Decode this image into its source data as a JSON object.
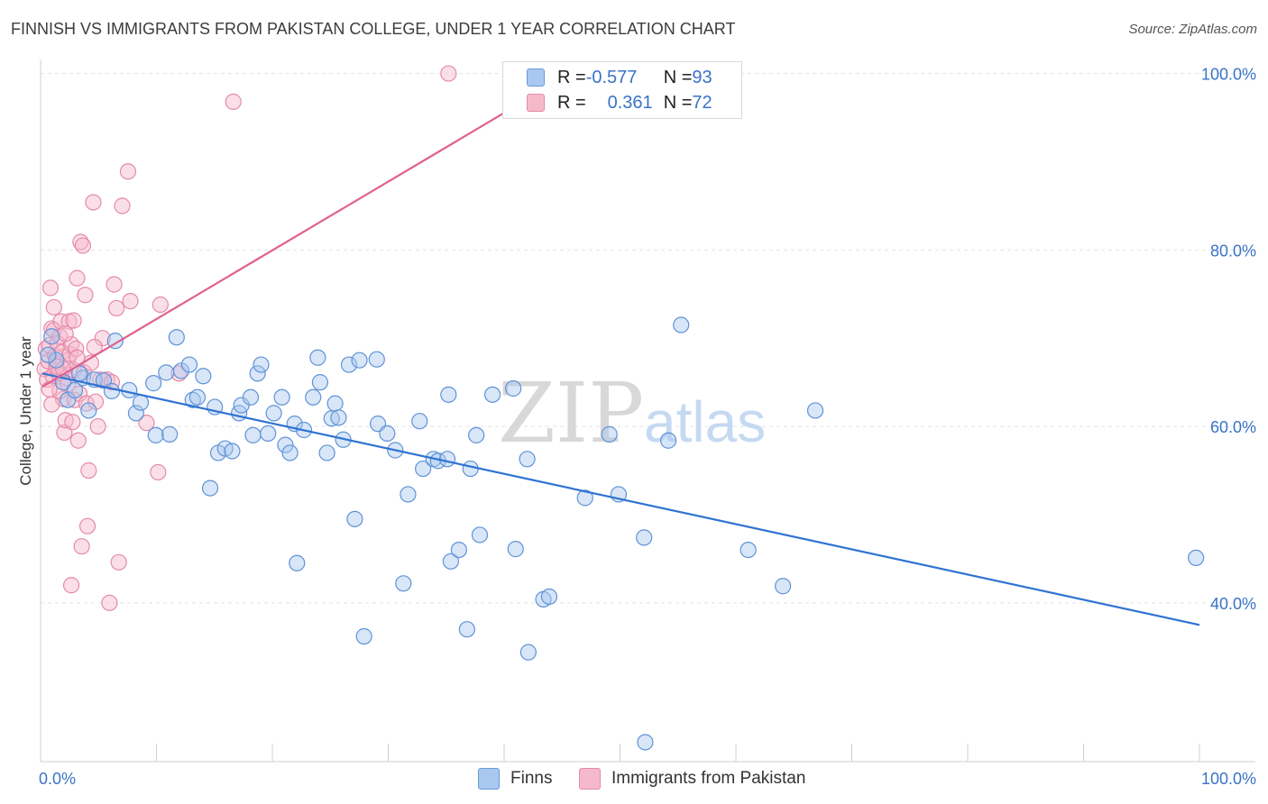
{
  "title": "FINNISH VS IMMIGRANTS FROM PAKISTAN COLLEGE, UNDER 1 YEAR CORRELATION CHART",
  "source": "Source: ZipAtlas.com",
  "watermark": {
    "zip": "ZIP",
    "atlas": "atlas"
  },
  "legend_stats": [
    {
      "r_label": "R = ",
      "r_value": "-0.577",
      "n_label": "N = ",
      "n_value": "93",
      "color": "#a9c8f0",
      "stroke": "#6a9ad8"
    },
    {
      "r_label": "R = ",
      "r_value": "0.361",
      "n_label": "N = ",
      "n_value": "72",
      "color": "#f6b9cc",
      "stroke": "#e58aa9"
    }
  ],
  "chart_data": {
    "type": "scatter",
    "title": "FINNISH VS IMMIGRANTS FROM PAKISTAN COLLEGE, UNDER 1 YEAR CORRELATION CHART",
    "xlabel": "",
    "ylabel": "College, Under 1 year",
    "x_tick_labels": [
      "0.0%",
      "100.0%"
    ],
    "y_tick_labels": [
      "40.0%",
      "60.0%",
      "80.0%",
      "100.0%"
    ],
    "y_ticks": [
      40,
      60,
      80,
      100
    ],
    "xlim": [
      0,
      100
    ],
    "ylim": [
      22,
      102
    ],
    "grid": true,
    "legend_position": "bottom-center",
    "series": [
      {
        "name": "Finns",
        "color": "#a9c8f0",
        "stroke": "#5f93d6",
        "line_color": "#2f73d2",
        "trend": {
          "x": [
            0,
            100
          ],
          "y": [
            66.0,
            37.5
          ]
        },
        "points": [
          [
            0.8,
            70.2
          ],
          [
            1.2,
            67.5
          ],
          [
            1.8,
            65.0
          ],
          [
            2.2,
            63.0
          ],
          [
            2.8,
            64.1
          ],
          [
            3.5,
            65.5
          ],
          [
            4.0,
            61.8
          ],
          [
            4.5,
            65.3
          ],
          [
            5.3,
            65.2
          ],
          [
            6.0,
            64.0
          ],
          [
            6.3,
            69.7
          ],
          [
            7.5,
            64.1
          ],
          [
            8.1,
            61.5
          ],
          [
            8.5,
            62.7
          ],
          [
            9.6,
            64.9
          ],
          [
            9.8,
            59.0
          ],
          [
            10.7,
            66.1
          ],
          [
            11.0,
            59.1
          ],
          [
            11.6,
            70.1
          ],
          [
            12.0,
            66.3
          ],
          [
            12.7,
            67.0
          ],
          [
            13.0,
            63.0
          ],
          [
            13.4,
            63.3
          ],
          [
            13.9,
            65.7
          ],
          [
            14.5,
            53.0
          ],
          [
            14.9,
            62.2
          ],
          [
            15.2,
            57.0
          ],
          [
            15.8,
            57.5
          ],
          [
            16.4,
            57.2
          ],
          [
            17.0,
            61.5
          ],
          [
            17.2,
            62.4
          ],
          [
            18.0,
            63.3
          ],
          [
            18.2,
            59.0
          ],
          [
            18.6,
            66.0
          ],
          [
            18.9,
            67.0
          ],
          [
            19.5,
            59.2
          ],
          [
            20.0,
            61.5
          ],
          [
            20.7,
            63.3
          ],
          [
            21.0,
            57.9
          ],
          [
            21.4,
            57.0
          ],
          [
            21.8,
            60.3
          ],
          [
            22.0,
            44.5
          ],
          [
            22.6,
            59.6
          ],
          [
            23.4,
            63.3
          ],
          [
            23.8,
            67.8
          ],
          [
            24.0,
            65.0
          ],
          [
            24.6,
            57.0
          ],
          [
            25.0,
            60.9
          ],
          [
            25.3,
            62.6
          ],
          [
            25.6,
            61.0
          ],
          [
            26.0,
            58.5
          ],
          [
            26.5,
            67.0
          ],
          [
            27.0,
            49.5
          ],
          [
            27.4,
            67.5
          ],
          [
            27.8,
            36.2
          ],
          [
            28.9,
            67.6
          ],
          [
            29.0,
            60.3
          ],
          [
            29.8,
            59.2
          ],
          [
            30.5,
            57.3
          ],
          [
            31.2,
            42.2
          ],
          [
            31.6,
            52.3
          ],
          [
            32.6,
            60.6
          ],
          [
            32.9,
            55.2
          ],
          [
            33.8,
            56.3
          ],
          [
            34.2,
            56.1
          ],
          [
            35.0,
            56.3
          ],
          [
            35.1,
            63.6
          ],
          [
            35.3,
            44.7
          ],
          [
            36.0,
            46.0
          ],
          [
            36.7,
            37.0
          ],
          [
            37.0,
            55.2
          ],
          [
            37.5,
            59.0
          ],
          [
            37.8,
            47.7
          ],
          [
            38.9,
            63.6
          ],
          [
            40.7,
            64.3
          ],
          [
            40.9,
            46.1
          ],
          [
            41.9,
            56.3
          ],
          [
            42.0,
            34.4
          ],
          [
            43.3,
            40.4
          ],
          [
            43.8,
            40.7
          ],
          [
            46.9,
            51.9
          ],
          [
            49.0,
            59.1
          ],
          [
            49.8,
            52.3
          ],
          [
            52.0,
            47.4
          ],
          [
            52.1,
            24.2
          ],
          [
            54.1,
            58.4
          ],
          [
            55.2,
            71.5
          ],
          [
            61.0,
            46.0
          ],
          [
            64.0,
            41.9
          ],
          [
            66.8,
            61.8
          ],
          [
            99.7,
            45.1
          ],
          [
            0.5,
            68.1
          ],
          [
            3.2,
            66.0
          ]
        ]
      },
      {
        "name": "Immigrants from Pakistan",
        "color": "#f6b9cc",
        "stroke": "#e58aa9",
        "line_color": "#e0608f",
        "trend": {
          "x": [
            0,
            40.5
          ],
          "y": [
            64.5,
            96.0
          ]
        },
        "points": [
          [
            0.2,
            66.5
          ],
          [
            0.3,
            68.8
          ],
          [
            0.4,
            65.3
          ],
          [
            0.5,
            67.4
          ],
          [
            0.6,
            69.2
          ],
          [
            0.7,
            75.7
          ],
          [
            0.8,
            71.1
          ],
          [
            0.9,
            65.7
          ],
          [
            1.0,
            70.9
          ],
          [
            1.1,
            68.0
          ],
          [
            1.2,
            67.2
          ],
          [
            1.3,
            69.4
          ],
          [
            1.4,
            66.0
          ],
          [
            1.5,
            70.2
          ],
          [
            1.6,
            71.9
          ],
          [
            1.7,
            68.4
          ],
          [
            1.8,
            63.1
          ],
          [
            1.9,
            59.3
          ],
          [
            2.0,
            60.7
          ],
          [
            2.1,
            65.5
          ],
          [
            2.2,
            67.5
          ],
          [
            2.3,
            71.9
          ],
          [
            2.4,
            68.2
          ],
          [
            2.5,
            69.3
          ],
          [
            2.6,
            60.5
          ],
          [
            2.7,
            66.4
          ],
          [
            2.8,
            63.0
          ],
          [
            2.9,
            68.8
          ],
          [
            3.0,
            67.8
          ],
          [
            3.1,
            58.4
          ],
          [
            3.2,
            63.7
          ],
          [
            3.3,
            80.9
          ],
          [
            3.4,
            46.4
          ],
          [
            3.5,
            80.5
          ],
          [
            3.6,
            66.1
          ],
          [
            3.7,
            74.9
          ],
          [
            3.8,
            62.6
          ],
          [
            3.9,
            48.7
          ],
          [
            4.0,
            55.0
          ],
          [
            4.2,
            67.2
          ],
          [
            4.4,
            85.4
          ],
          [
            4.6,
            62.8
          ],
          [
            4.8,
            60.0
          ],
          [
            5.0,
            65.3
          ],
          [
            5.2,
            70.0
          ],
          [
            5.6,
            65.3
          ],
          [
            5.8,
            40.0
          ],
          [
            6.2,
            76.1
          ],
          [
            6.4,
            73.4
          ],
          [
            6.6,
            44.6
          ],
          [
            6.9,
            85.0
          ],
          [
            7.4,
            88.9
          ],
          [
            7.6,
            74.2
          ],
          [
            9.0,
            60.4
          ],
          [
            10.0,
            54.8
          ],
          [
            10.2,
            73.8
          ],
          [
            11.8,
            66.0
          ],
          [
            16.5,
            96.8
          ],
          [
            35.1,
            100.0
          ],
          [
            2.5,
            42.0
          ],
          [
            1.0,
            73.5
          ],
          [
            1.5,
            64.0
          ],
          [
            0.8,
            62.5
          ],
          [
            2.0,
            70.5
          ],
          [
            3.0,
            76.8
          ],
          [
            4.5,
            69.0
          ],
          [
            6.0,
            65.0
          ],
          [
            1.2,
            66.8
          ],
          [
            0.6,
            64.2
          ],
          [
            2.7,
            72.0
          ],
          [
            1.8,
            66.5
          ],
          [
            2.2,
            64.8
          ]
        ]
      }
    ]
  }
}
